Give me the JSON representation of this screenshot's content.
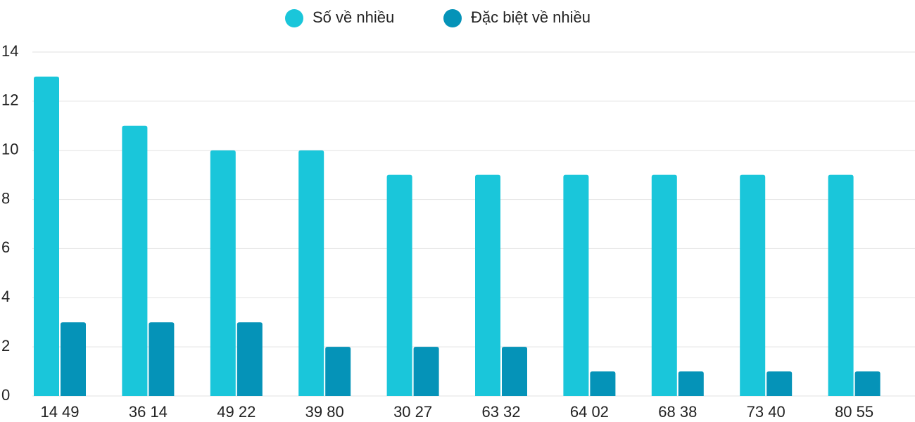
{
  "chart_data": {
    "type": "bar",
    "categories": [
      "14 49",
      "36 14",
      "49 22",
      "39 80",
      "30 27",
      "63 32",
      "64 02",
      "68 38",
      "73 40",
      "80 55"
    ],
    "series": [
      {
        "name": "Số về nhiều",
        "color": "#1ac6da",
        "values": [
          13,
          11,
          10,
          10,
          9,
          9,
          9,
          9,
          9,
          9
        ]
      },
      {
        "name": "Đặc biệt về nhiều",
        "color": "#0593b8",
        "values": [
          3,
          3,
          3,
          2,
          2,
          2,
          1,
          1,
          1,
          1
        ]
      }
    ],
    "ylim": [
      0,
      14
    ],
    "yticks": [
      0,
      2,
      4,
      6,
      8,
      10,
      12,
      14
    ],
    "grid": true,
    "legend": "top"
  }
}
